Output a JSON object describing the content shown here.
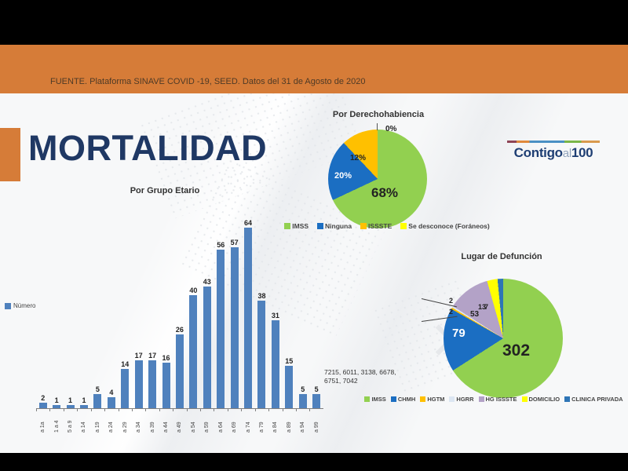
{
  "header": {
    "source_text": "FUENTE. Plataforma SINAVE COVID -19, SEED. Datos del 31 de Agosto de 2020"
  },
  "slide": {
    "title": "MORTALIDAD"
  },
  "logo": {
    "part1": "Contigo",
    "part2": "al",
    "part3": "100"
  },
  "colors": {
    "band_orange": "#D67C38",
    "title_navy": "#1F3864",
    "bar_blue": "#4F81BD"
  },
  "chart_data": [
    {
      "type": "bar",
      "title": "Por Grupo Etario",
      "legend_label": "Número",
      "categories": [
        "a 1a",
        "1 a 4",
        "5 a 9",
        "a 14",
        "a 19",
        "a 24",
        "a 29",
        "a 34",
        "a 39",
        "a 44",
        "a 49",
        "a 54",
        "a 59",
        "a 64",
        "a 69",
        "a 74",
        "a 79",
        "a 84",
        "a 89",
        "a 94",
        "a 99"
      ],
      "values": [
        2,
        1,
        1,
        1,
        5,
        4,
        14,
        17,
        17,
        16,
        26,
        40,
        43,
        56,
        57,
        64,
        38,
        31,
        15,
        5,
        5
      ],
      "bar_color": "#4F81BD",
      "ylim": [
        0,
        70
      ],
      "grid": false,
      "annotation": "7215, 6011, 3138, 6678, 6751, 7042"
    },
    {
      "type": "pie",
      "title": "Por Derechohabiencia",
      "labels": [
        "IMSS",
        "Ninguna",
        "ISSSTE",
        "Se desconoce (Foráneos)"
      ],
      "values": [
        68,
        20,
        12,
        0
      ],
      "slice_labels": [
        "68%",
        "20%",
        "12%",
        "0%"
      ],
      "colors": [
        "#92D050",
        "#1B6EC2",
        "#FFC000",
        "#FFFF00"
      ],
      "legend_position": "bottom"
    },
    {
      "type": "pie",
      "title": "Lugar de Defunción",
      "labels": [
        "IMSS",
        "CHMH",
        "HGTM",
        "HGRR",
        "HG ISSSTE",
        "DOMICILIO",
        "CLINICA PRIVADA"
      ],
      "values": [
        302,
        79,
        2,
        2,
        53,
        13,
        7
      ],
      "slice_labels": [
        "302",
        "79",
        "2",
        "2",
        "53",
        "13",
        "7"
      ],
      "colors": [
        "#92D050",
        "#1B6EC2",
        "#FFC000",
        "#DCE6F2",
        "#B3A2C7",
        "#FFFF00",
        "#2E75B6"
      ],
      "legend_position": "bottom"
    }
  ]
}
